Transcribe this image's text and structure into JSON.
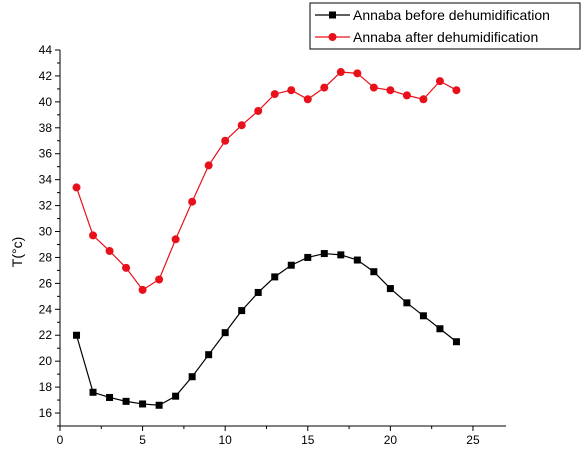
{
  "colors": {
    "series_1": "#000000",
    "series_2": "#e8101a",
    "axis": "#000000"
  },
  "chart_data": {
    "type": "line",
    "title": "",
    "xlabel": "",
    "ylabel": "T(°c)",
    "xlim": [
      0,
      27
    ],
    "ylim": [
      15,
      44
    ],
    "xticks": [
      0,
      5,
      10,
      15,
      20,
      25
    ],
    "yticks": [
      16,
      18,
      20,
      22,
      24,
      26,
      28,
      30,
      32,
      34,
      36,
      38,
      40,
      42,
      44
    ],
    "grid": false,
    "legend_position": "top-right",
    "x": [
      1,
      2,
      3,
      4,
      5,
      6,
      7,
      8,
      9,
      10,
      11,
      12,
      13,
      14,
      15,
      16,
      17,
      18,
      19,
      20,
      21,
      22,
      23,
      24
    ],
    "series": [
      {
        "name": "Annaba before dehumidification",
        "marker": "square",
        "values": [
          22.0,
          17.6,
          17.2,
          16.9,
          16.7,
          16.6,
          17.3,
          18.8,
          20.5,
          22.2,
          23.9,
          25.3,
          26.5,
          27.4,
          28.0,
          28.3,
          28.2,
          27.8,
          26.9,
          25.6,
          24.5,
          23.5,
          22.5,
          21.5
        ]
      },
      {
        "name": "Annaba after dehumidification",
        "marker": "circle",
        "values": [
          33.4,
          29.7,
          28.5,
          27.2,
          25.5,
          26.3,
          29.4,
          32.3,
          35.1,
          37.0,
          38.2,
          39.3,
          40.6,
          40.9,
          40.2,
          41.1,
          42.3,
          42.2,
          41.1,
          40.9,
          40.5,
          40.2,
          41.6,
          40.9
        ]
      }
    ]
  }
}
